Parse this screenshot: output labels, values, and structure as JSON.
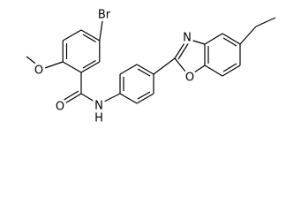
{
  "atoms": [
    {
      "label": "Br"
    },
    {
      "label": "O"
    },
    {
      "label": "O"
    },
    {
      "label": "N"
    },
    {
      "label": "H"
    },
    {
      "label": "N"
    },
    {
      "label": "O"
    }
  ]
}
